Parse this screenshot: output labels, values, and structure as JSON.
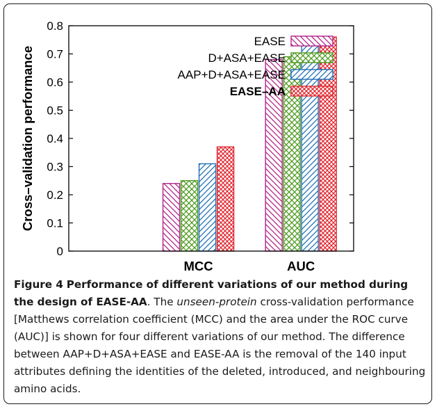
{
  "chart_data": {
    "type": "bar",
    "categories": [
      "MCC",
      "AUC"
    ],
    "series": [
      {
        "name": "EASE",
        "values": [
          0.24,
          0.68
        ],
        "color": "#b0238a",
        "pattern": "diag-down",
        "bold": false
      },
      {
        "name": "D+ASA+EASE",
        "values": [
          0.25,
          0.69
        ],
        "color": "#4e9a1f",
        "pattern": "crosshatch",
        "bold": false
      },
      {
        "name": "AAP+D+ASA+EASE",
        "values": [
          0.31,
          0.74
        ],
        "color": "#1f6fb5",
        "pattern": "diag-up",
        "bold": false
      },
      {
        "name": "EASE–AA",
        "values": [
          0.37,
          0.76
        ],
        "color": "#e0262e",
        "pattern": "fine-crosshatch",
        "bold": true
      }
    ],
    "ylabel": "Cross–validation performance",
    "xlabel": "",
    "ylim": [
      0,
      0.8
    ],
    "yticks": [
      "0",
      "0.1",
      "0.2",
      "0.3",
      "0.4",
      "0.5",
      "0.6",
      "0.7",
      "0.8"
    ],
    "grid": false,
    "legend_position": "top-right"
  },
  "caption": {
    "label": "Figure 4",
    "title": "Performance of different variations of our method during the design of EASE-AA",
    "text_1": ". The ",
    "italic": "unseen-protein",
    "text_2": " cross-validation performance [Matthews correlation coefficient (MCC) and the area under the ROC curve (AUC)] is shown for four different variations of our method. The difference between AAP+D+ASA+EASE and EASE-AA is the removal of the 140 input attributes defining the identities of the deleted, introduced, and neighbouring amino acids."
  }
}
